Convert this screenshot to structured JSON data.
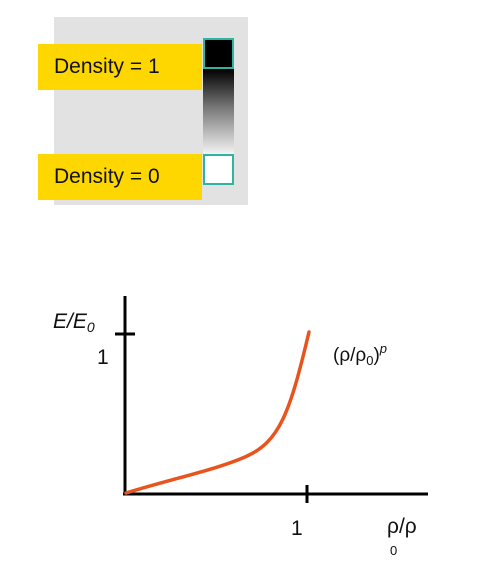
{
  "density_legend": {
    "top_label": "Density = 1",
    "bottom_label": "Density = 0",
    "high_color": "#000000",
    "low_color": "#ffffff",
    "swatch_border_color": "#2fb3a3",
    "label_background": "#ffd700",
    "panel_background": "#e2e2e2"
  },
  "graph": {
    "y_axis_label_main": "E/E",
    "y_axis_label_sub": "0",
    "y_tick_label": "1",
    "x_tick_label": "1",
    "x_axis_label_main": "ρ/ρ",
    "x_axis_label_sub": "0",
    "curve_label_open": "(ρ/ρ",
    "curve_label_sub": "0",
    "curve_label_close": ")",
    "curve_label_exp": "p",
    "curve_color": "#e8541e",
    "axis_color": "#000000"
  }
}
